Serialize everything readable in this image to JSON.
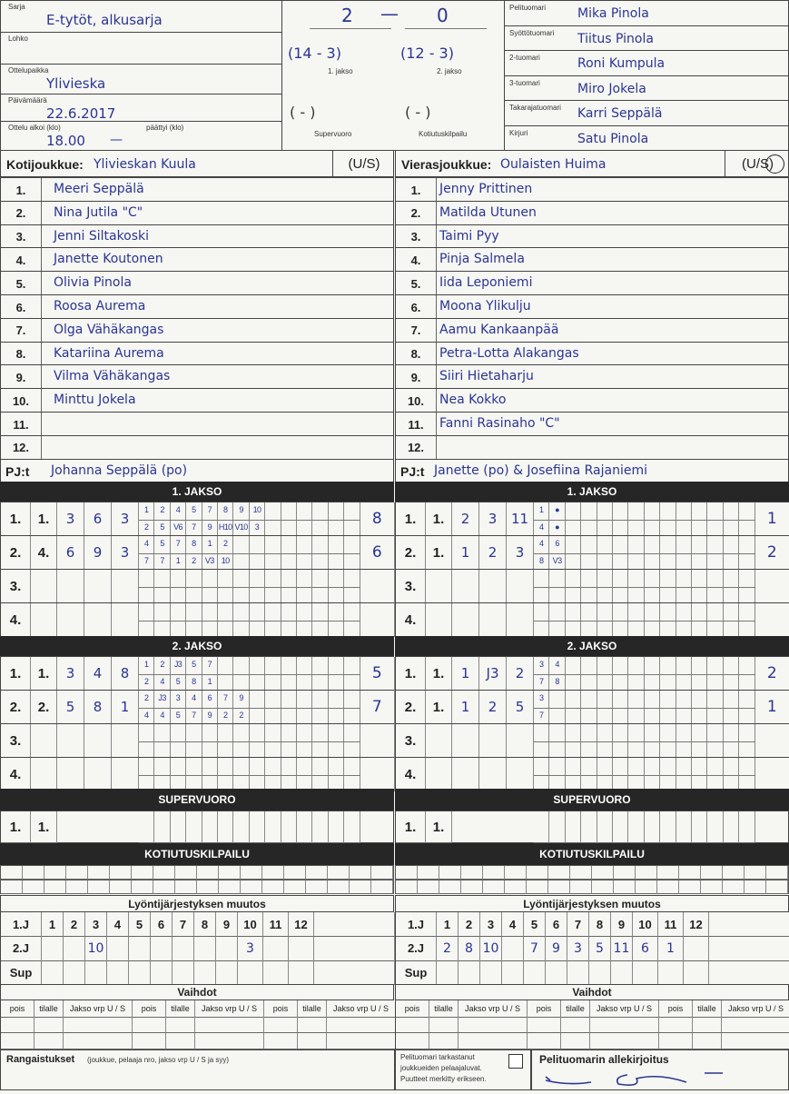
{
  "header": {
    "left": [
      {
        "label": "Sarja",
        "value": "E-tytöt, alkusarja"
      },
      {
        "label": "Lohko",
        "value": ""
      },
      {
        "label": "Ottelupaikka",
        "value": "Ylivieska"
      },
      {
        "label": "Päivämäärä",
        "value": "22.6.2017"
      },
      {
        "label": "Ottelu alkoi (klo)",
        "value": "18.00",
        "label2": "päättyi (klo)",
        "value2": "—"
      }
    ],
    "score": {
      "home": "2",
      "away": "0",
      "dash": "—",
      "j1": "(14 - 3)",
      "j2": "(12 - 3)",
      "j1_label": "1. jakso",
      "j2_label": "2. jakso",
      "sup": "(  -  )",
      "kot": "(  -  )",
      "sup_label": "Supervuoro",
      "kot_label": "Kotiutuskilpailu"
    },
    "officials": [
      {
        "label": "Pelituomari",
        "value": "Mika Pinola"
      },
      {
        "label": "Syöttötuomari",
        "value": "Tiitus Pinola"
      },
      {
        "label": "2-tuomari",
        "value": "Roni Kumpula"
      },
      {
        "label": "3-tuomari",
        "value": "Miro Jokela"
      },
      {
        "label": "Takarajatuomari",
        "value": "Karri Seppälä"
      },
      {
        "label": "Kirjuri",
        "value": "Satu Pinola"
      }
    ]
  },
  "teams": [
    {
      "label": "Kotijoukkue:",
      "name": "Ylivieskan Kuula",
      "us": "(U/S)",
      "players": [
        "Meeri Seppälä",
        "Nina Jutila \"C\"",
        "Jenni Siltakoski",
        "Janette Koutonen",
        "Olivia Pinola",
        "Roosa Aurema",
        "Olga Vähäkangas",
        "Katariina Aurema",
        "Vilma Vähäkangas",
        "Minttu Jokela",
        "",
        ""
      ],
      "pj_label": "PJ:t",
      "pj": "Johanna Seppälä (po)"
    },
    {
      "label": "Vierasjoukkue:",
      "name": "Oulaisten Huima",
      "us": "(U/S)",
      "us_circled": "S",
      "players": [
        "Jenny Prittinen",
        "Matilda Utunen",
        "Taimi Pyy",
        "Pinja Salmela",
        "Iida Leponiemi",
        "Moona Ylikulju",
        "Aamu Kankaanpää",
        "Petra-Lotta Alakangas",
        "Siiri Hietaharju",
        "Nea Kokko",
        "Fanni Rasinaho \"C\"",
        ""
      ],
      "pj_label": "PJ:t",
      "pj": "Janette (po) & Josefiina Rajaniemi"
    }
  ],
  "numbers": [
    "1.",
    "2.",
    "3.",
    "4.",
    "5.",
    "6.",
    "7.",
    "8.",
    "9.",
    "10.",
    "11.",
    "12."
  ],
  "periods": [
    {
      "title": "1. JAKSO",
      "halves": [
        {
          "rows": [
            {
              "cols": [
                "1.",
                "1.",
                "3",
                "6",
                "3"
              ],
              "top": [
                "1",
                "2",
                "4",
                "5",
                "7",
                "8",
                "9",
                "10"
              ],
              "bottom": [
                "2",
                "5",
                "V6",
                "7",
                "9",
                "H10",
                "V10",
                "3"
              ],
              "total": "8"
            },
            {
              "cols": [
                "2.",
                "4.",
                "6",
                "9",
                "3"
              ],
              "top": [
                "4",
                "5",
                "7",
                "8",
                "1",
                "2"
              ],
              "bottom": [
                "7",
                "7",
                "1",
                "2",
                "V3",
                "10"
              ],
              "total": "6"
            },
            {
              "cols": [
                "3.",
                "",
                "",
                "",
                ""
              ],
              "top": [],
              "bottom": [],
              "total": ""
            },
            {
              "cols": [
                "4.",
                "",
                "",
                "",
                ""
              ],
              "top": [],
              "bottom": [],
              "total": ""
            }
          ]
        },
        {
          "rows": [
            {
              "cols": [
                "1.",
                "1.",
                "2",
                "3",
                "11"
              ],
              "top": [
                "1",
                "●"
              ],
              "bottom": [
                "4",
                "●"
              ],
              "total": "1"
            },
            {
              "cols": [
                "2.",
                "1.",
                "1",
                "2",
                "3"
              ],
              "top": [
                "4",
                "6"
              ],
              "bottom": [
                "8",
                "V3"
              ],
              "total": "2"
            },
            {
              "cols": [
                "3.",
                "",
                "",
                "",
                ""
              ],
              "top": [],
              "bottom": [],
              "total": ""
            },
            {
              "cols": [
                "4.",
                "",
                "",
                "",
                ""
              ],
              "top": [],
              "bottom": [],
              "total": ""
            }
          ]
        }
      ]
    },
    {
      "title": "2. JAKSO",
      "halves": [
        {
          "rows": [
            {
              "cols": [
                "1.",
                "1.",
                "3",
                "4",
                "8"
              ],
              "top": [
                "1",
                "2",
                "J3",
                "5",
                "7"
              ],
              "bottom": [
                "2",
                "4",
                "5",
                "8",
                "1"
              ],
              "total": "5"
            },
            {
              "cols": [
                "2.",
                "2.",
                "5",
                "8",
                "1"
              ],
              "top": [
                "2",
                "J3",
                "3",
                "4",
                "6",
                "7",
                "9"
              ],
              "bottom": [
                "4",
                "4",
                "5",
                "7",
                "9",
                "2",
                "2"
              ],
              "total": "7"
            },
            {
              "cols": [
                "3.",
                "",
                "",
                "",
                ""
              ],
              "top": [],
              "bottom": [],
              "total": ""
            },
            {
              "cols": [
                "4.",
                "",
                "",
                "",
                ""
              ],
              "top": [],
              "bottom": [],
              "total": ""
            }
          ]
        },
        {
          "rows": [
            {
              "cols": [
                "1.",
                "1.",
                "1",
                "J3",
                "2"
              ],
              "top": [
                "3",
                "4"
              ],
              "bottom": [
                "7",
                "8"
              ],
              "total": "2"
            },
            {
              "cols": [
                "2.",
                "1.",
                "1",
                "2",
                "5"
              ],
              "top": [
                "3"
              ],
              "bottom": [
                "7"
              ],
              "total": "1"
            },
            {
              "cols": [
                "3.",
                "",
                "",
                "",
                ""
              ],
              "top": [],
              "bottom": [],
              "total": ""
            },
            {
              "cols": [
                "4.",
                "",
                "",
                "",
                ""
              ],
              "top": [],
              "bottom": [],
              "total": ""
            }
          ]
        }
      ]
    }
  ],
  "supervuoro": {
    "title": "SUPERVUORO",
    "row": [
      "1.",
      "1."
    ]
  },
  "kotiutus": {
    "title": "KOTIUTUSKILPAILU"
  },
  "lineup": {
    "title": "Lyöntijärjestyksen muutos",
    "positions": [
      "1",
      "2",
      "3",
      "4",
      "5",
      "6",
      "7",
      "8",
      "9",
      "10",
      "11",
      "12"
    ],
    "row_labels": [
      "1.J",
      "2.J",
      "Sup"
    ],
    "halves": [
      {
        "j2": [
          "",
          "",
          "10",
          "",
          "",
          "",
          "",
          "",
          "",
          "3",
          "",
          ""
        ]
      },
      {
        "j2": [
          "2",
          "8",
          "10",
          "",
          "7",
          "9",
          "3",
          "5",
          "11",
          "6",
          "1",
          ""
        ]
      }
    ]
  },
  "vaihdot": {
    "title": "Vaihdot",
    "cols": [
      "pois",
      "tilalle",
      "Jakso vrp U / S"
    ]
  },
  "footer": {
    "penalties_label": "Rangaistukset",
    "penalties_note": "(joukkue, pelaaja nro, jakso vrp U / S ja syy)",
    "check_text": [
      "Pelituomari tarkastanut",
      "joukkueiden pelaajaluvat.",
      "Puutteet merkitty erikseen."
    ],
    "signature_label": "Pelituomarin allekirjoitus"
  },
  "colors": {
    "ink": "#2b3590",
    "bar": "#262626"
  }
}
